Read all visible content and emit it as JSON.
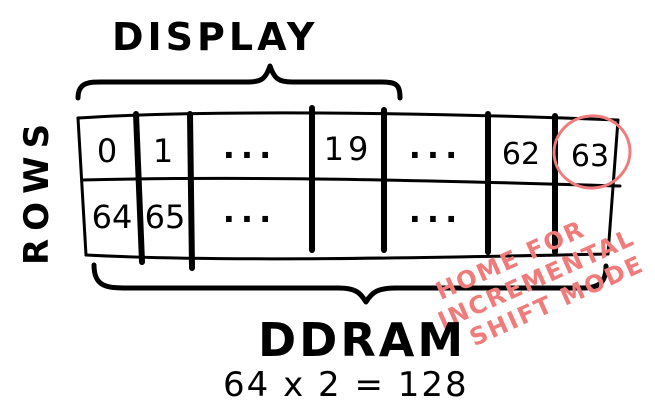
{
  "header": {
    "display_label": "DISPLAY"
  },
  "side": {
    "rows_label": "ROWS"
  },
  "grid": {
    "row1": [
      "0",
      "1",
      "...",
      "19",
      "...",
      "62",
      "63"
    ],
    "row2": [
      "64",
      "65",
      "...",
      "...",
      "",
      "",
      ""
    ]
  },
  "footer": {
    "ddram_label": "DDRAM",
    "ddram_formula": "64 x 2 = 128"
  },
  "note": {
    "line1": "HOME FOR",
    "line2": "INCREMENTAL",
    "line3": "SHIFT MODE"
  },
  "colors": {
    "ink": "#000000",
    "accent": "#f07b7b"
  }
}
